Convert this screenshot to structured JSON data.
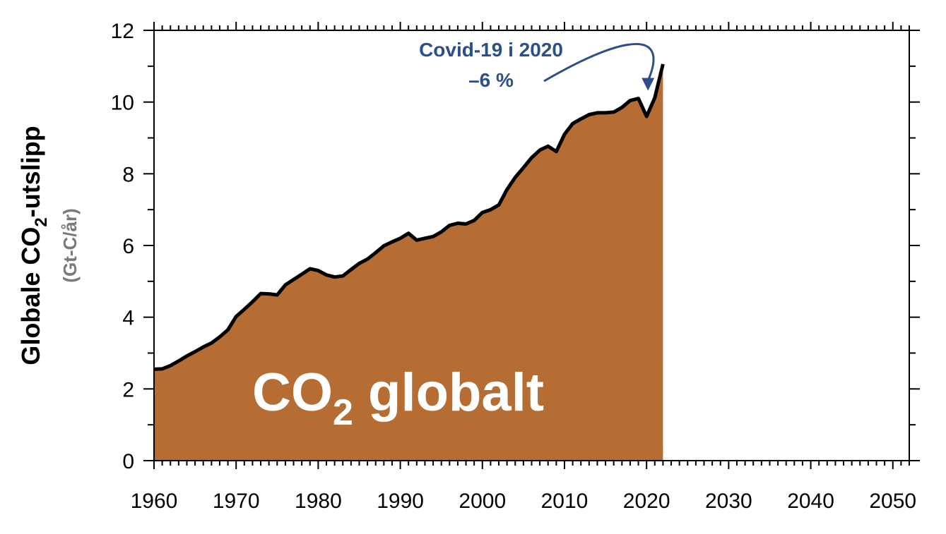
{
  "chart_data": {
    "type": "area",
    "title": "",
    "ylabel": {
      "main_prefix": "Globale CO",
      "main_subscript": "2",
      "main_suffix": "-utslipp",
      "unit": "(Gt-C/år)"
    },
    "xlabel": "",
    "xlim": [
      1960,
      2052
    ],
    "ylim": [
      0,
      12
    ],
    "xticks": [
      "1960",
      "1970",
      "1980",
      "1990",
      "2000",
      "2010",
      "2020",
      "2030",
      "2040",
      "2050"
    ],
    "yticks": [
      "0",
      "2",
      "4",
      "6",
      "8",
      "10",
      "12"
    ],
    "grid": false,
    "legend": "none",
    "area_label": {
      "prefix": "CO",
      "subscript": "2",
      "suffix": " globalt"
    },
    "annotation": {
      "line1": "Covid-19 i 2020",
      "line2": "–6 %",
      "color": "#2b4f8a",
      "x": 2020,
      "y": 10.2
    },
    "area_color": "#b56d33",
    "line_color": "#000000",
    "series": [
      {
        "x": [
          1960,
          1961,
          1962,
          1963,
          1964,
          1965,
          1966,
          1967,
          1968,
          1969,
          1970,
          1971,
          1972,
          1973,
          1974,
          1975,
          1976,
          1977,
          1978,
          1979,
          1980,
          1981,
          1982,
          1983,
          1984,
          1985,
          1986,
          1987,
          1988,
          1989,
          1990,
          1991,
          1992,
          1993,
          1994,
          1995,
          1996,
          1997,
          1998,
          1999,
          2000,
          2001,
          2002,
          2003,
          2004,
          2005,
          2006,
          2007,
          2008,
          2009,
          2010,
          2011,
          2012,
          2013,
          2014,
          2015,
          2016,
          2017,
          2018,
          2019,
          2020,
          2021,
          2022
        ],
        "y": [
          2.55,
          2.56,
          2.65,
          2.78,
          2.92,
          3.04,
          3.17,
          3.28,
          3.45,
          3.65,
          4.02,
          4.22,
          4.43,
          4.66,
          4.65,
          4.62,
          4.9,
          5.05,
          5.2,
          5.35,
          5.3,
          5.18,
          5.12,
          5.15,
          5.33,
          5.5,
          5.62,
          5.8,
          5.99,
          6.1,
          6.2,
          6.34,
          6.15,
          6.2,
          6.25,
          6.38,
          6.56,
          6.62,
          6.6,
          6.7,
          6.92,
          7.0,
          7.13,
          7.56,
          7.9,
          8.17,
          8.45,
          8.66,
          8.77,
          8.62,
          9.1,
          9.4,
          9.53,
          9.65,
          9.7,
          9.7,
          9.72,
          9.85,
          10.04,
          10.1,
          9.6,
          10.12,
          11.06
        ]
      }
    ]
  }
}
